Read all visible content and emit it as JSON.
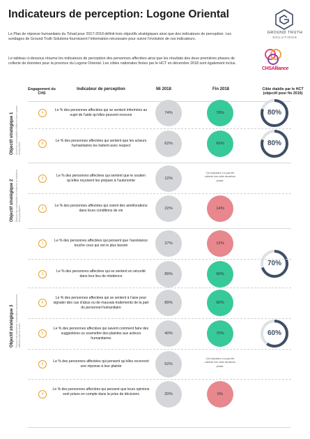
{
  "title": "Indicateurs de perception: Logone Oriental",
  "intro": [
    "Le Plan de réponse humanitaire du Tchad pour 2017-2019 définit trois objectifs stratégiques ainsi que des indicateurs de perception. Les sondages de Ground Truth Solutions fournissent l’information nécessaire pour suivre l’évolution de ces indicateurs.",
    "Le tableau ci-dessous résume les indicateurs de perception des personnes affectées ainsi que les résultats des deux premières phases de collecte de données pour la province du Logone Oriental. Les cibles nationales fixées par le HCT en décembre 2018 sont également inclus."
  ],
  "logos": {
    "gts_name": "GROUND TRUTH",
    "gts_sub": "SOLUTIONS",
    "chs_name": "CHSAlliance",
    "gts_icon": "hexagon-g-logo-icon",
    "chs_icon": "interlocked-rings-logo-icon"
  },
  "headers": {
    "engagement": "Engagement du CHS",
    "indicateur": "Indicateur de perception",
    "mi": "Mi 2018",
    "fin": "Fin 2018",
    "cible": "Cible établie par le HCT (objectif pour fin 2019)"
  },
  "objectives": [
    {
      "label": "Objectif stratégique 1",
      "sub": "Suivre les vulnérabilités ciblées et leurs causes structurelles"
    },
    {
      "label": "Objectif stratégique 2",
      "sub": "Réduire les vulnérabilités et renforcer la résilience des populations"
    },
    {
      "label": "Objectif stratégique 3",
      "sub": "Fournir une assistance humanitaire aux personnes affectées par les crises"
    }
  ],
  "rows": [
    {
      "chs": "4",
      "text": "Le % des personnes affectées qui se sentent informées au sujet de l’aide qu’elles peuvent recevoir",
      "mi": "74%",
      "fin": "78%",
      "fin_color": "green",
      "target": "80%"
    },
    {
      "chs": "8",
      "text": "Le % des personnes affectées qui sentent que les acteurs humanitaires les traitent avec respect",
      "mi": "62%",
      "fin": "66%",
      "fin_color": "green",
      "target": "80%"
    },
    {
      "chs": "3",
      "text": "Le % des personnes affectées qui sentent que le soutien qu’elles reçoivent les prépare à l’autonomie",
      "mi": "12%",
      "fin": "",
      "fin_note": "Cet indicateur n’a pas été collecté lors cette deuxième phase.",
      "fin_color": "none",
      "target": ""
    },
    {
      "chs": "2",
      "text": "Le % des personnes affectées qui voient des améliorations dans leurs conditions de vie",
      "mi": "22%",
      "fin": "14%",
      "fin_color": "red",
      "target": ""
    },
    {
      "chs": "1",
      "text": "Le % des personnes affectées qui pensent que l’assistance touche ceux qui ont le plus besoin",
      "mi": "27%",
      "fin": "12%",
      "fin_color": "red",
      "target": "70%"
    },
    {
      "chs": "3",
      "text": "Le % des personnes affectées qui se sentent en sécurité dans leur lieu de résidence",
      "mi": "89%",
      "fin": "90%",
      "fin_color": "green",
      "target": ""
    },
    {
      "chs": "5",
      "text": "Le % des personnes affectées qui se sentent à l’aise pour signaler des cas d’abus ou de mauvais traitements de la part du personnel humanitaire",
      "mi": "89%",
      "fin": "90%",
      "fin_color": "green",
      "target": ""
    },
    {
      "chs": "5",
      "text": "Le % des personnes affectées qui savent comment faire des suggestions ou soumettre des plaintes aux acteurs humanitaires",
      "mi": "40%",
      "fin": "70%",
      "fin_color": "green",
      "target": "60%"
    },
    {
      "chs": "5",
      "text": "Le % des personnes affectées qui pensent qu’elles recevront une réponse à leur plainte",
      "mi": "52%",
      "fin": "",
      "fin_note": "Cet indicateur n’a pas été collecté lors cette deuxième phase.",
      "fin_color": "none",
      "target": ""
    },
    {
      "chs": "4",
      "text": "Le % des personnes affectées qui pensent que leurs opinions sont prises en compte dans la prise de décisions",
      "mi": "20%",
      "fin": "5%",
      "fin_color": "red",
      "target": ""
    }
  ],
  "colors": {
    "green": "#38c99a",
    "red": "#e8878e",
    "grey": "#d4d6d9",
    "accent": "#e5a12e",
    "ring": "#3f4f66"
  }
}
